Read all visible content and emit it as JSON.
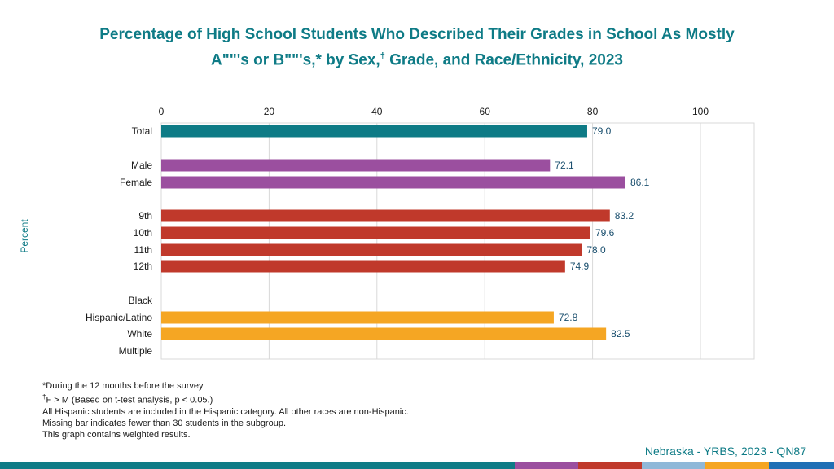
{
  "title_line1": "Percentage of High School Students Who Described Their Grades in School As Mostly",
  "title_line2a": "A\"\"'s or B\"\"'s,* by Sex,",
  "title_dagger": "†",
  "title_line2b": " Grade, and Race/Ethnicity, 2023",
  "notes": {
    "n1": "*During the 12 months before the survey",
    "n2_dagger": "†",
    "n2": "F > M (Based on t-test analysis, p < 0.05.)",
    "n3": "All Hispanic students are included in the Hispanic category.  All other races are non-Hispanic.",
    "n4": "Missing bar indicates fewer than 30 students in the subgroup.",
    "n5": "This graph contains weighted results."
  },
  "source": "Nebraska - YRBS, 2023 - QN87",
  "colors": {
    "teal": "#0e7b86",
    "purple": "#9b4f9f",
    "red": "#c0392b",
    "orange": "#f5a623",
    "light_blue": "#8fb8d8",
    "blue": "#1f6fb5"
  },
  "chart_data": {
    "type": "bar",
    "orientation": "horizontal",
    "title": "Percentage of High School Students Who Described Their Grades in School As Mostly A\"\"'s or B\"\"'s,* by Sex,† Grade, and Race/Ethnicity, 2023",
    "xlabel": "",
    "ylabel": "Percent",
    "xlim": [
      0,
      110
    ],
    "xticks": [
      0,
      20,
      40,
      60,
      80,
      100
    ],
    "grid": true,
    "categories": [
      "Total",
      "Male",
      "Female",
      "9th",
      "10th",
      "11th",
      "12th",
      "Black",
      "Hispanic/Latino",
      "White",
      "Multiple"
    ],
    "values": [
      79.0,
      72.1,
      86.1,
      83.2,
      79.6,
      78.0,
      74.9,
      null,
      72.8,
      82.5,
      null
    ],
    "value_labels": [
      "79.0",
      "72.1",
      "86.1",
      "83.2",
      "79.6",
      "78.0",
      "74.9",
      "",
      "72.8",
      "82.5",
      ""
    ],
    "groups": [
      "total",
      "sex",
      "sex",
      "grade",
      "grade",
      "grade",
      "grade",
      "race",
      "race",
      "race",
      "race"
    ],
    "group_colors": {
      "total": "#0e7b86",
      "sex": "#9b4f9f",
      "grade": "#c0392b",
      "race": "#f5a623"
    }
  }
}
